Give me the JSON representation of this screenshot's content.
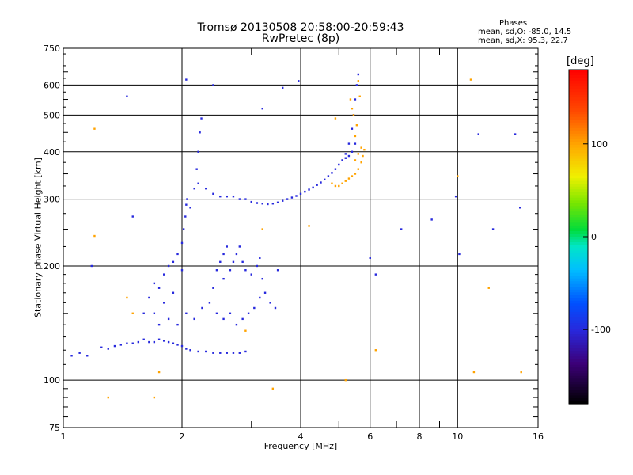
{
  "title": {
    "line1": "Tromsø 20130508 20:58:00-20:59:43",
    "line2": "RwPretec (8p)"
  },
  "stats": {
    "header": "Phases",
    "o_line": "mean, sd,O: -85.0, 14.5",
    "x_line": "mean, sd,X:  95.3, 22.7"
  },
  "colorbar": {
    "title": "[deg]",
    "range": [
      -180,
      180
    ],
    "ticks": [
      100,
      0,
      -100
    ],
    "tick_labels": [
      "100",
      "0",
      "-100"
    ]
  },
  "chart_data": {
    "type": "scatter",
    "xlabel": "Frequency [MHz]",
    "ylabel": "Stationary phase Virtual Height [km]",
    "xscale": "log",
    "yscale": "log",
    "xlim": [
      1,
      16
    ],
    "ylim": [
      75,
      750
    ],
    "xticks": [
      1,
      2,
      4,
      6,
      8,
      10,
      16
    ],
    "xtick_labels": [
      "1",
      "2",
      "4",
      "6",
      "8",
      "10",
      "16"
    ],
    "x_grid_lines": [
      2,
      4,
      6,
      8,
      10
    ],
    "x_minor_ticks": [
      3,
      5,
      7,
      9
    ],
    "yticks": [
      75,
      100,
      200,
      300,
      400,
      500,
      600,
      750
    ],
    "ytick_labels": [
      "75",
      "100",
      "200",
      "300",
      "400",
      "500",
      "600",
      "750"
    ],
    "y_grid_lines": [
      100,
      200,
      300,
      400,
      500,
      600
    ],
    "grid": true,
    "series": [
      {
        "mode": "O",
        "color_phase_deg": -100,
        "points": [
          [
            1.05,
            116
          ],
          [
            1.1,
            118
          ],
          [
            1.15,
            116
          ],
          [
            1.25,
            122
          ],
          [
            1.3,
            121
          ],
          [
            1.35,
            123
          ],
          [
            1.4,
            124
          ],
          [
            1.45,
            125
          ],
          [
            1.5,
            125
          ],
          [
            1.55,
            126
          ],
          [
            1.6,
            128
          ],
          [
            1.65,
            126
          ],
          [
            1.7,
            126
          ],
          [
            1.75,
            128
          ],
          [
            1.8,
            127
          ],
          [
            1.85,
            126
          ],
          [
            1.9,
            125
          ],
          [
            1.95,
            124
          ],
          [
            2.0,
            123
          ],
          [
            2.05,
            121
          ],
          [
            2.1,
            120
          ],
          [
            2.2,
            119
          ],
          [
            2.3,
            119
          ],
          [
            2.4,
            118
          ],
          [
            2.5,
            118
          ],
          [
            2.6,
            118
          ],
          [
            2.7,
            118
          ],
          [
            2.8,
            118
          ],
          [
            2.9,
            119
          ],
          [
            1.6,
            150
          ],
          [
            1.65,
            165
          ],
          [
            1.7,
            180
          ],
          [
            1.75,
            175
          ],
          [
            1.8,
            190
          ],
          [
            1.85,
            200
          ],
          [
            1.9,
            205
          ],
          [
            1.95,
            215
          ],
          [
            2.0,
            230
          ],
          [
            2.02,
            250
          ],
          [
            2.04,
            270
          ],
          [
            2.05,
            290
          ],
          [
            2.06,
            300
          ],
          [
            2.1,
            285
          ],
          [
            2.0,
            195
          ],
          [
            1.9,
            170
          ],
          [
            1.8,
            160
          ],
          [
            1.7,
            150
          ],
          [
            1.75,
            140
          ],
          [
            1.85,
            145
          ],
          [
            1.95,
            140
          ],
          [
            2.05,
            150
          ],
          [
            2.15,
            145
          ],
          [
            2.25,
            155
          ],
          [
            2.35,
            160
          ],
          [
            2.45,
            150
          ],
          [
            2.55,
            145
          ],
          [
            2.65,
            150
          ],
          [
            2.75,
            140
          ],
          [
            2.85,
            145
          ],
          [
            2.95,
            150
          ],
          [
            3.05,
            155
          ],
          [
            3.15,
            165
          ],
          [
            3.25,
            170
          ],
          [
            3.35,
            160
          ],
          [
            3.45,
            155
          ],
          [
            2.5,
            205
          ],
          [
            2.55,
            215
          ],
          [
            2.6,
            225
          ],
          [
            2.45,
            195
          ],
          [
            2.4,
            175
          ],
          [
            2.55,
            185
          ],
          [
            2.65,
            195
          ],
          [
            2.7,
            205
          ],
          [
            2.75,
            215
          ],
          [
            2.8,
            225
          ],
          [
            2.85,
            205
          ],
          [
            2.9,
            195
          ],
          [
            3.0,
            190
          ],
          [
            3.1,
            200
          ],
          [
            3.15,
            210
          ],
          [
            3.2,
            185
          ],
          [
            2.15,
            320
          ],
          [
            2.18,
            360
          ],
          [
            2.2,
            400
          ],
          [
            2.22,
            450
          ],
          [
            2.24,
            490
          ],
          [
            2.2,
            330
          ],
          [
            2.3,
            320
          ],
          [
            2.4,
            310
          ],
          [
            2.5,
            305
          ],
          [
            2.6,
            305
          ],
          [
            2.7,
            305
          ],
          [
            2.8,
            300
          ],
          [
            2.9,
            300
          ],
          [
            3.0,
            295
          ],
          [
            3.1,
            293
          ],
          [
            3.2,
            292
          ],
          [
            3.3,
            291
          ],
          [
            3.4,
            292
          ],
          [
            3.5,
            294
          ],
          [
            3.6,
            297
          ],
          [
            3.7,
            300
          ],
          [
            3.8,
            303
          ],
          [
            3.9,
            306
          ],
          [
            4.0,
            310
          ],
          [
            4.1,
            314
          ],
          [
            4.2,
            318
          ],
          [
            4.3,
            322
          ],
          [
            4.4,
            327
          ],
          [
            4.5,
            332
          ],
          [
            4.6,
            338
          ],
          [
            4.7,
            345
          ],
          [
            4.8,
            352
          ],
          [
            4.9,
            360
          ],
          [
            5.0,
            370
          ],
          [
            5.1,
            380
          ],
          [
            5.2,
            395
          ],
          [
            5.3,
            420
          ],
          [
            5.4,
            460
          ],
          [
            5.45,
            500
          ],
          [
            5.5,
            550
          ],
          [
            5.55,
            600
          ],
          [
            5.6,
            640
          ],
          [
            5.5,
            420
          ],
          [
            5.4,
            400
          ],
          [
            5.3,
            390
          ],
          [
            5.2,
            385
          ],
          [
            1.45,
            560
          ],
          [
            2.05,
            620
          ],
          [
            2.4,
            600
          ],
          [
            3.2,
            520
          ],
          [
            3.6,
            590
          ],
          [
            3.95,
            615
          ],
          [
            1.5,
            270
          ],
          [
            1.18,
            200
          ],
          [
            7.2,
            250
          ],
          [
            8.6,
            265
          ],
          [
            9.9,
            305
          ],
          [
            10.1,
            215
          ],
          [
            11.3,
            445
          ],
          [
            12.3,
            250
          ],
          [
            14.4,
            285
          ],
          [
            14.0,
            445
          ],
          [
            6.2,
            190
          ],
          [
            6.0,
            210
          ],
          [
            3.5,
            195
          ]
        ]
      },
      {
        "mode": "X",
        "color_phase_deg": 100,
        "points": [
          [
            4.8,
            330
          ],
          [
            4.9,
            325
          ],
          [
            5.0,
            325
          ],
          [
            5.1,
            330
          ],
          [
            5.2,
            335
          ],
          [
            5.3,
            340
          ],
          [
            5.4,
            345
          ],
          [
            5.5,
            350
          ],
          [
            5.6,
            360
          ],
          [
            5.7,
            375
          ],
          [
            5.75,
            390
          ],
          [
            5.8,
            405
          ],
          [
            5.7,
            410
          ],
          [
            5.6,
            395
          ],
          [
            5.5,
            380
          ],
          [
            5.45,
            500
          ],
          [
            5.4,
            520
          ],
          [
            5.35,
            550
          ],
          [
            5.6,
            615
          ],
          [
            5.65,
            560
          ],
          [
            5.55,
            470
          ],
          [
            5.5,
            440
          ],
          [
            1.2,
            460
          ],
          [
            1.2,
            240
          ],
          [
            1.45,
            165
          ],
          [
            1.5,
            150
          ],
          [
            1.75,
            105
          ],
          [
            1.3,
            90
          ],
          [
            1.7,
            90
          ],
          [
            3.4,
            95
          ],
          [
            4.2,
            255
          ],
          [
            5.2,
            100
          ],
          [
            6.2,
            120
          ],
          [
            10.0,
            345
          ],
          [
            10.8,
            620
          ],
          [
            11.0,
            105
          ],
          [
            12.0,
            175
          ],
          [
            14.5,
            105
          ],
          [
            2.9,
            135
          ],
          [
            3.2,
            250
          ],
          [
            4.9,
            490
          ]
        ]
      }
    ]
  }
}
